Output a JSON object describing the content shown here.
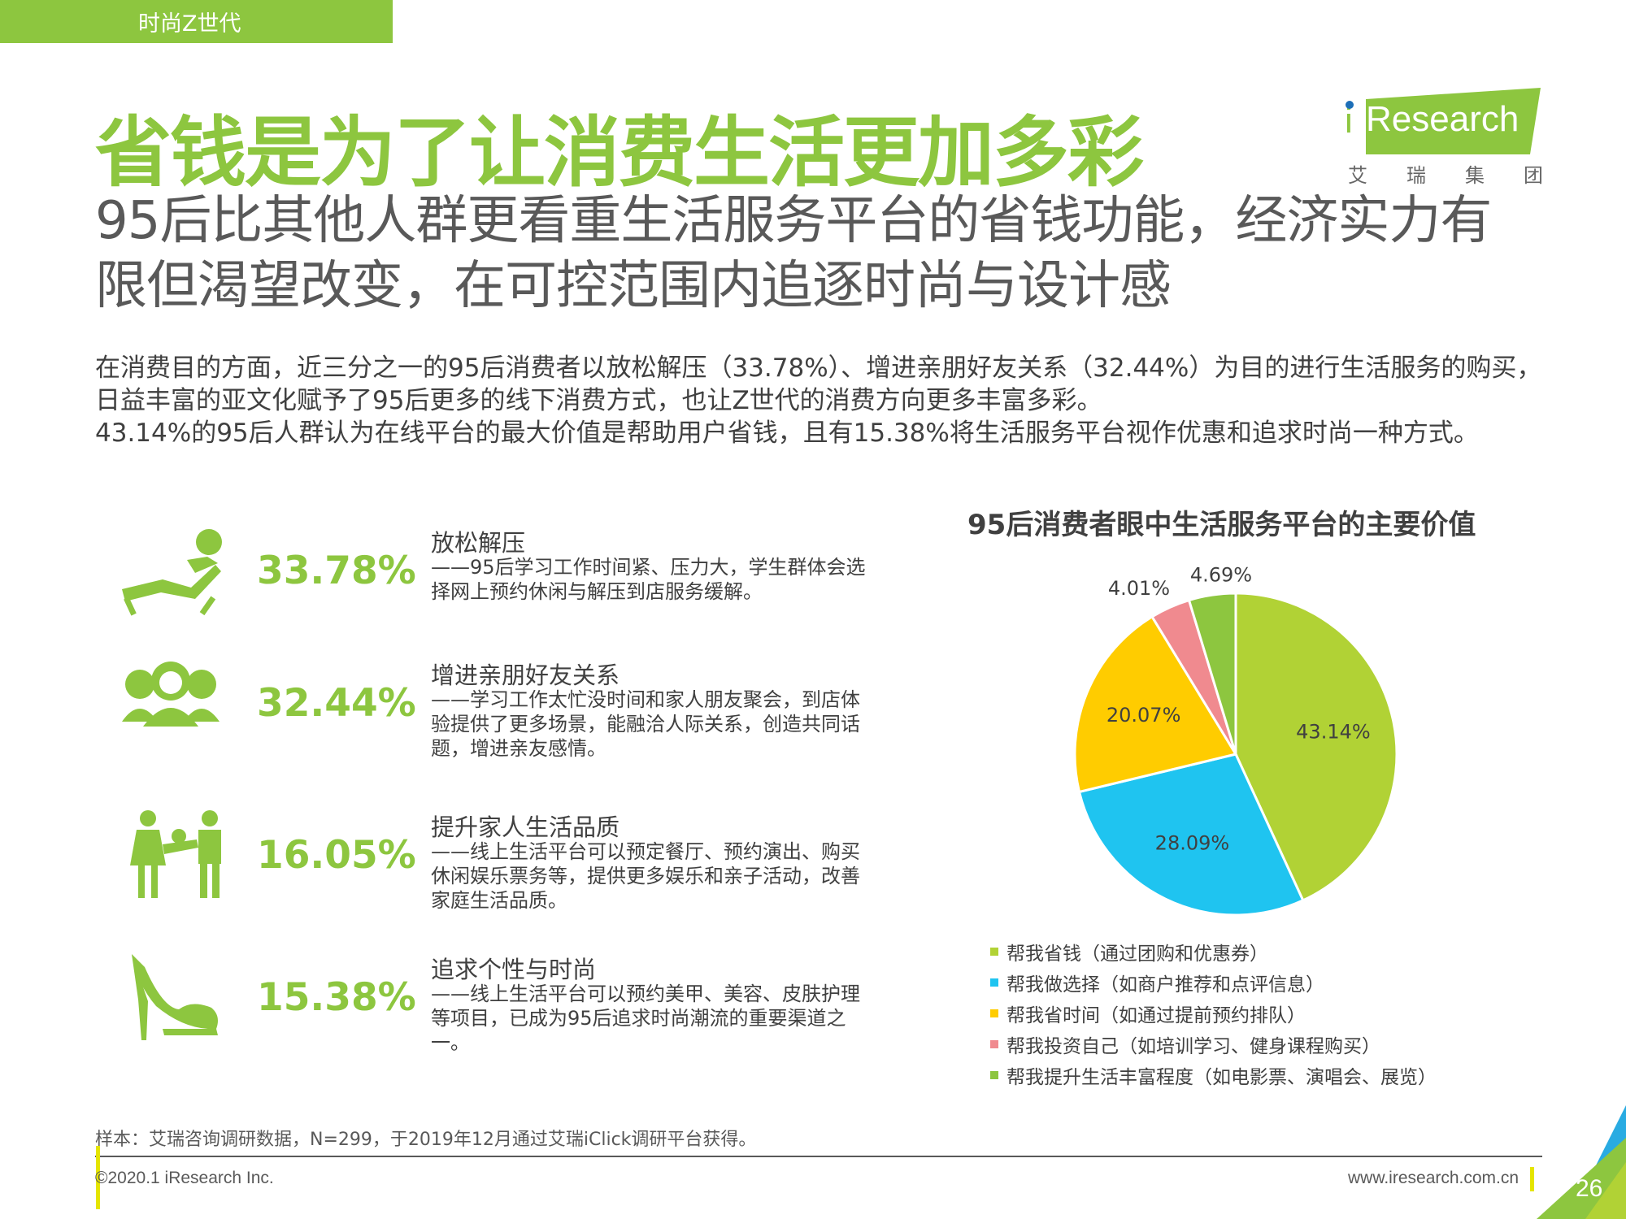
{
  "section_tag": "时尚Z世代",
  "title": "省钱是为了让消费生活更加多彩",
  "logo": {
    "brand_prefix": "i",
    "brand": "Research",
    "cn": [
      "艾",
      "瑞",
      "集",
      "团"
    ]
  },
  "subtitle": "95后比其他人群更看重生活服务平台的省钱功能，经济实力有限但渴望改变，在可控范围内追逐时尚与设计感",
  "intro": [
    "在消费目的方面，近三分之一的95后消费者以放松解压（33.78%）、增进亲朋好友关系（32.44%）为目的进行生活服务的购买，日益丰富的亚文化赋予了95后更多的线下消费方式，也让Z世代的消费方向更多丰富多彩。",
    "43.14%的95后人群认为在线平台的最大价值是帮助用户省钱，且有15.38%将生活服务平台视作优惠和追求时尚一种方式。"
  ],
  "purposes": [
    {
      "pct": "33.78%",
      "title": "放松解压",
      "desc": "——95后学习工作时间紧、压力大，学生群体会选择网上预约休闲与解压到店服务缓解。",
      "icon": "lounge-chair-icon"
    },
    {
      "pct": "32.44%",
      "title": "增进亲朋好友关系",
      "desc": "——学习工作太忙没时间和家人朋友聚会，到店体验提供了更多场景，能融洽人际关系，创造共同话题，增进亲友感情。",
      "icon": "friends-group-icon"
    },
    {
      "pct": "16.05%",
      "title": "提升家人生活品质",
      "desc": "——线上生活平台可以预定餐厅、预约演出、购买休闲娱乐票务等，提供更多娱乐和亲子活动，改善家庭生活品质。",
      "icon": "family-icon"
    },
    {
      "pct": "15.38%",
      "title": "追求个性与时尚",
      "desc": "——线上生活平台可以预约美甲、美容、皮肤护理等项目，已成为95后追求时尚潮流的重要渠道之一。",
      "icon": "high-heel-icon"
    }
  ],
  "chart_data": {
    "type": "pie",
    "title": "95后消费者眼中生活服务平台的主要价值",
    "series": [
      {
        "name": "帮我省钱（通过团购和优惠券）",
        "value": 43.14,
        "label": "43.14%",
        "color": "#b1d235"
      },
      {
        "name": "帮我做选择（如商户推荐和点评信息）",
        "value": 28.09,
        "label": "28.09%",
        "color": "#1fc4f0"
      },
      {
        "name": "帮我省时间（如通过提前预约排队）",
        "value": 20.07,
        "label": "20.07%",
        "color": "#ffcc00"
      },
      {
        "name": "帮我投资自己（如培训学习、健身课程购买）",
        "value": 4.01,
        "label": "4.01%",
        "color": "#f08a8f"
      },
      {
        "name": "帮我提升生活丰富程度（如电影票、演唱会、展览）",
        "value": 4.69,
        "label": "4.69%",
        "color": "#8dc63f"
      }
    ],
    "legend_position": "bottom"
  },
  "footer": {
    "source": "样本：艾瑞咨询调研数据，N=299，于2019年12月通过艾瑞iClick调研平台获得。",
    "copyright": "©2020.1 iResearch Inc.",
    "website": "www.iresearch.com.cn",
    "page": "26"
  },
  "colors": {
    "accent": "#8dc63f",
    "text": "#404040",
    "subtitle": "#595959"
  }
}
